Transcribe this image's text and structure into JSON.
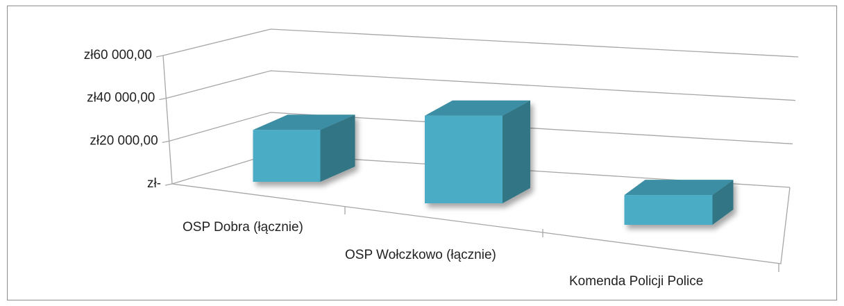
{
  "chart_data": {
    "type": "bar3d",
    "categories": [
      "OSP Dobra (łącznie)",
      "OSP Wołczkowo (łącznie)",
      "Komenda Policji Police"
    ],
    "values": [
      23000,
      37000,
      12000
    ],
    "color": "#4bacc6",
    "ylim": [
      0,
      60000
    ],
    "yticks": [
      {
        "value": 0,
        "label": "zł-"
      },
      {
        "value": 20000,
        "label": "zł20 000,00"
      },
      {
        "value": 40000,
        "label": "zł40 000,00"
      },
      {
        "value": 60000,
        "label": "zł60 000,00"
      }
    ],
    "grid": true
  }
}
